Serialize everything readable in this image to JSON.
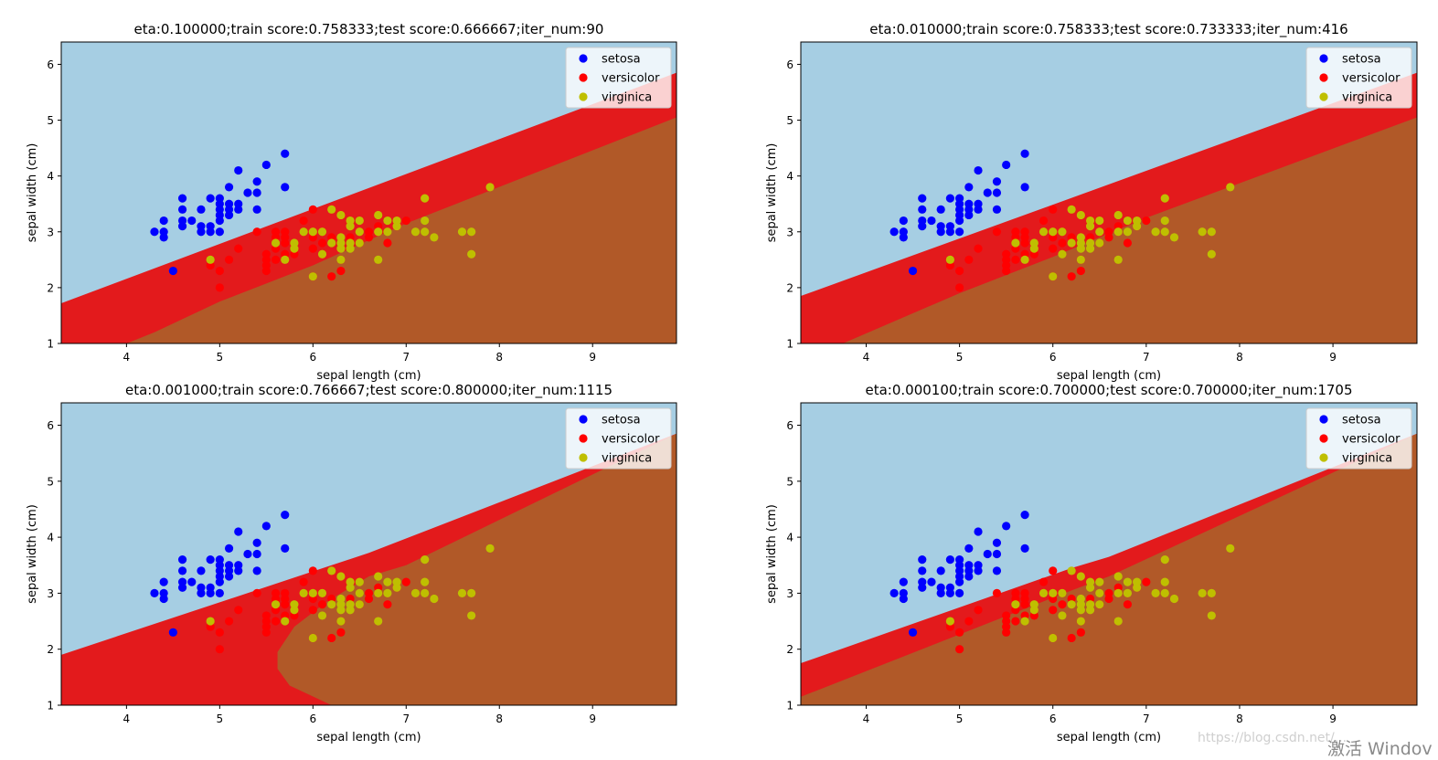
{
  "colors": {
    "region_setosa": "#a6cee3",
    "region_versicolor": "#e31a1c",
    "region_virginica": "#b15928",
    "setosa": "#0000ff",
    "versicolor": "#ff0000",
    "virginica": "#bfbf00"
  },
  "watermark": {
    "url": "https://blog.csdn.net/...",
    "activate": "激活 Windov"
  },
  "chart_data": [
    {
      "type": "scatter",
      "title": "eta:0.100000;train score:0.758333;test score:0.666667;iter_num:90",
      "xlabel": "sepal length (cm)",
      "ylabel": "sepal width (cm)",
      "xlim": [
        3.3,
        9.9
      ],
      "ylim": [
        1.0,
        6.4
      ],
      "xticks": [
        4,
        5,
        6,
        7,
        8,
        9
      ],
      "yticks": [
        1,
        2,
        3,
        4,
        5,
        6
      ],
      "legend": "top-right",
      "series_names": [
        "setosa",
        "versicolor",
        "virginica"
      ],
      "boundaries": {
        "upper": [
          [
            3.3,
            1.72
          ],
          [
            9.9,
            5.85
          ]
        ],
        "lower": [
          [
            4.0,
            1.0
          ],
          [
            4.3,
            1.2
          ],
          [
            5.0,
            1.75
          ],
          [
            6.0,
            2.4
          ],
          [
            7.0,
            3.15
          ],
          [
            9.9,
            5.05
          ]
        ]
      }
    },
    {
      "type": "scatter",
      "title": "eta:0.010000;train score:0.758333;test score:0.733333;iter_num:416",
      "xlabel": "sepal length (cm)",
      "ylabel": "sepal width (cm)",
      "xlim": [
        3.3,
        9.9
      ],
      "ylim": [
        1.0,
        6.4
      ],
      "xticks": [
        4,
        5,
        6,
        7,
        8,
        9
      ],
      "yticks": [
        1,
        2,
        3,
        4,
        5,
        6
      ],
      "legend": "top-right",
      "series_names": [
        "setosa",
        "versicolor",
        "virginica"
      ],
      "boundaries": {
        "upper": [
          [
            3.3,
            1.85
          ],
          [
            9.9,
            5.85
          ]
        ],
        "lower": [
          [
            3.75,
            1.0
          ],
          [
            5.0,
            1.9
          ],
          [
            6.0,
            2.55
          ],
          [
            7.0,
            3.25
          ],
          [
            9.9,
            5.05
          ]
        ]
      }
    },
    {
      "type": "scatter",
      "title": "eta:0.001000;train score:0.766667;test score:0.800000;iter_num:1115",
      "xlabel": "sepal length (cm)",
      "ylabel": "sepal width (cm)",
      "xlim": [
        3.3,
        9.9
      ],
      "ylim": [
        1.0,
        6.4
      ],
      "xticks": [
        4,
        5,
        6,
        7,
        8,
        9
      ],
      "yticks": [
        1,
        2,
        3,
        4,
        5,
        6
      ],
      "legend": "top-right",
      "series_names": [
        "setosa",
        "versicolor",
        "virginica"
      ],
      "boundaries": {
        "upper": [
          [
            3.3,
            1.9
          ],
          [
            6.2,
            3.5
          ],
          [
            6.6,
            3.72
          ],
          [
            9.9,
            5.85
          ]
        ],
        "lower": [
          [
            6.2,
            1.0
          ],
          [
            5.75,
            1.35
          ],
          [
            5.62,
            1.65
          ],
          [
            5.62,
            1.95
          ],
          [
            5.8,
            2.4
          ],
          [
            6.15,
            2.85
          ],
          [
            6.6,
            3.3
          ],
          [
            7.0,
            3.5
          ],
          [
            9.9,
            5.85
          ]
        ]
      }
    },
    {
      "type": "scatter",
      "title": "eta:0.000100;train score:0.700000;test score:0.700000;iter_num:1705",
      "xlabel": "sepal length (cm)",
      "ylabel": "sepal width (cm)",
      "xlim": [
        3.3,
        9.9
      ],
      "ylim": [
        1.0,
        6.4
      ],
      "xticks": [
        4,
        5,
        6,
        7,
        8,
        9
      ],
      "yticks": [
        1,
        2,
        3,
        4,
        5,
        6
      ],
      "legend": "top-right",
      "series_names": [
        "setosa",
        "versicolor",
        "virginica"
      ],
      "boundaries": {
        "upper": [
          [
            3.3,
            1.75
          ],
          [
            6.2,
            3.45
          ],
          [
            6.6,
            3.65
          ],
          [
            9.9,
            5.85
          ]
        ],
        "lower": [
          [
            3.3,
            1.15
          ],
          [
            6.2,
            3.05
          ],
          [
            6.6,
            3.3
          ],
          [
            9.9,
            5.85
          ]
        ]
      }
    }
  ],
  "points": {
    "setosa": [
      [
        4.3,
        3.0
      ],
      [
        4.4,
        2.9
      ],
      [
        4.4,
        3.0
      ],
      [
        4.4,
        3.2
      ],
      [
        4.5,
        2.3
      ],
      [
        4.6,
        3.1
      ],
      [
        4.6,
        3.2
      ],
      [
        4.6,
        3.4
      ],
      [
        4.6,
        3.6
      ],
      [
        4.7,
        3.2
      ],
      [
        4.8,
        3.0
      ],
      [
        4.8,
        3.1
      ],
      [
        4.8,
        3.4
      ],
      [
        4.9,
        3.0
      ],
      [
        4.9,
        3.1
      ],
      [
        4.9,
        3.6
      ],
      [
        5.0,
        3.0
      ],
      [
        5.0,
        3.2
      ],
      [
        5.0,
        3.3
      ],
      [
        5.0,
        3.4
      ],
      [
        5.0,
        3.5
      ],
      [
        5.0,
        3.6
      ],
      [
        5.1,
        3.3
      ],
      [
        5.1,
        3.4
      ],
      [
        5.1,
        3.5
      ],
      [
        5.1,
        3.8
      ],
      [
        5.2,
        3.4
      ],
      [
        5.2,
        3.5
      ],
      [
        5.2,
        4.1
      ],
      [
        5.3,
        3.7
      ],
      [
        5.4,
        3.4
      ],
      [
        5.4,
        3.7
      ],
      [
        5.4,
        3.9
      ],
      [
        5.5,
        4.2
      ],
      [
        5.7,
        3.8
      ],
      [
        5.7,
        4.4
      ]
    ],
    "versicolor": [
      [
        4.9,
        2.4
      ],
      [
        5.0,
        2.0
      ],
      [
        5.0,
        2.3
      ],
      [
        5.1,
        2.5
      ],
      [
        5.2,
        2.7
      ],
      [
        5.4,
        3.0
      ],
      [
        5.5,
        2.3
      ],
      [
        5.5,
        2.4
      ],
      [
        5.5,
        2.5
      ],
      [
        5.5,
        2.6
      ],
      [
        5.6,
        2.5
      ],
      [
        5.6,
        2.7
      ],
      [
        5.6,
        2.9
      ],
      [
        5.6,
        3.0
      ],
      [
        5.7,
        2.6
      ],
      [
        5.7,
        2.8
      ],
      [
        5.7,
        2.9
      ],
      [
        5.7,
        3.0
      ],
      [
        5.8,
        2.6
      ],
      [
        5.8,
        2.7
      ],
      [
        5.9,
        3.0
      ],
      [
        5.9,
        3.2
      ],
      [
        6.0,
        2.2
      ],
      [
        6.0,
        2.7
      ],
      [
        6.0,
        2.9
      ],
      [
        6.0,
        3.4
      ],
      [
        6.1,
        2.8
      ],
      [
        6.1,
        3.0
      ],
      [
        6.2,
        2.2
      ],
      [
        6.2,
        2.9
      ],
      [
        6.3,
        2.3
      ],
      [
        6.3,
        2.5
      ],
      [
        6.3,
        3.3
      ],
      [
        6.4,
        2.9
      ],
      [
        6.4,
        3.2
      ],
      [
        6.5,
        2.8
      ],
      [
        6.6,
        2.9
      ],
      [
        6.6,
        3.0
      ],
      [
        6.7,
        3.0
      ],
      [
        6.7,
        3.1
      ],
      [
        6.8,
        2.8
      ],
      [
        6.9,
        3.1
      ],
      [
        7.0,
        3.2
      ]
    ],
    "virginica": [
      [
        4.9,
        2.5
      ],
      [
        5.6,
        2.8
      ],
      [
        5.7,
        2.5
      ],
      [
        5.8,
        2.7
      ],
      [
        5.8,
        2.8
      ],
      [
        5.9,
        3.0
      ],
      [
        6.0,
        2.2
      ],
      [
        6.0,
        3.0
      ],
      [
        6.1,
        2.6
      ],
      [
        6.1,
        3.0
      ],
      [
        6.2,
        2.8
      ],
      [
        6.2,
        3.4
      ],
      [
        6.3,
        2.5
      ],
      [
        6.3,
        2.7
      ],
      [
        6.3,
        2.8
      ],
      [
        6.3,
        2.9
      ],
      [
        6.3,
        3.3
      ],
      [
        6.4,
        2.7
      ],
      [
        6.4,
        2.8
      ],
      [
        6.4,
        3.1
      ],
      [
        6.4,
        3.2
      ],
      [
        6.5,
        2.8
      ],
      [
        6.5,
        3.0
      ],
      [
        6.5,
        3.2
      ],
      [
        6.7,
        2.5
      ],
      [
        6.7,
        3.0
      ],
      [
        6.7,
        3.3
      ],
      [
        6.8,
        3.0
      ],
      [
        6.8,
        3.2
      ],
      [
        6.9,
        3.1
      ],
      [
        6.9,
        3.2
      ],
      [
        7.1,
        3.0
      ],
      [
        7.2,
        3.0
      ],
      [
        7.2,
        3.2
      ],
      [
        7.2,
        3.6
      ],
      [
        7.3,
        2.9
      ],
      [
        7.6,
        3.0
      ],
      [
        7.7,
        2.6
      ],
      [
        7.7,
        3.0
      ],
      [
        7.9,
        3.8
      ]
    ]
  }
}
